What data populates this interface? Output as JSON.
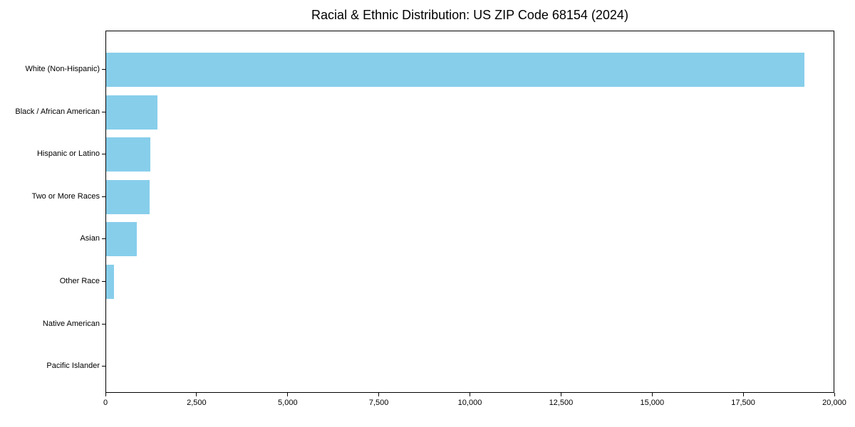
{
  "chart_data": {
    "type": "bar",
    "orientation": "horizontal",
    "title": "Racial & Ethnic Distribution: US ZIP Code 68154 (2024)",
    "categories": [
      "White (Non-Hispanic)",
      "Black / African American",
      "Hispanic or Latino",
      "Two or More Races",
      "Asian",
      "Other Race",
      "Native American",
      "Pacific Islander"
    ],
    "values": [
      19160,
      1410,
      1210,
      1200,
      840,
      220,
      0,
      0
    ],
    "xlabel": "",
    "ylabel": "",
    "xlim": [
      0,
      20000
    ],
    "xticks": [
      {
        "value": 0,
        "label": "0"
      },
      {
        "value": 2500,
        "label": "2,500"
      },
      {
        "value": 5000,
        "label": "5,000"
      },
      {
        "value": 7500,
        "label": "7,500"
      },
      {
        "value": 10000,
        "label": "10,000"
      },
      {
        "value": 12500,
        "label": "12,500"
      },
      {
        "value": 15000,
        "label": "15,000"
      },
      {
        "value": 17500,
        "label": "17,500"
      },
      {
        "value": 20000,
        "label": "20,000"
      }
    ],
    "bar_color": "#87CEEB",
    "axis_color": "#000000",
    "background_color": "#ffffff",
    "grid": false,
    "legend": null
  }
}
